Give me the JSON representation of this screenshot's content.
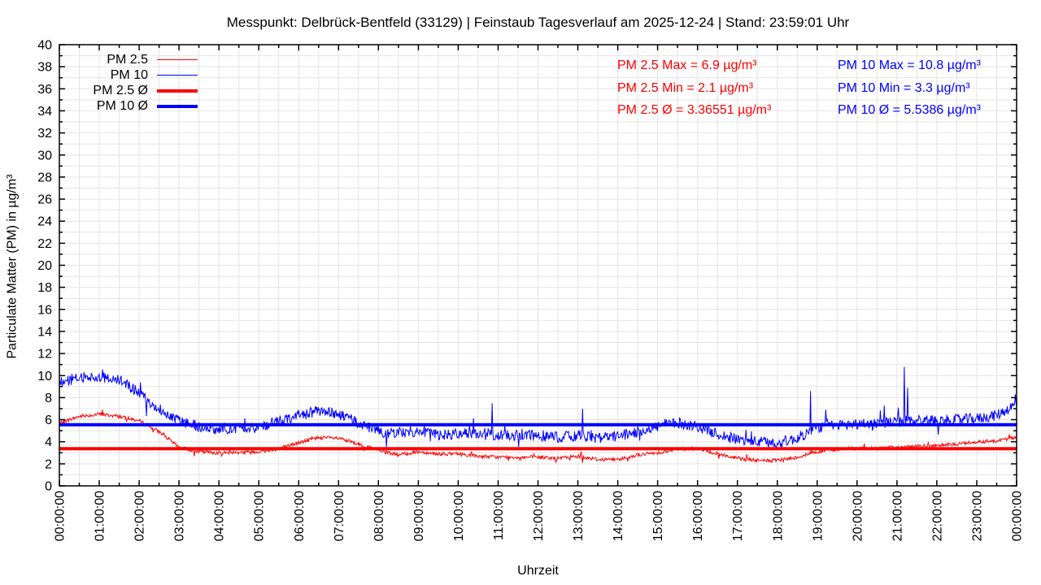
{
  "title": "Messpunkt: Delbrück-Bentfeld (33129) | Feinstaub Tagesverlauf am 2025-12-24 | Stand: 23:59:01 Uhr",
  "legend": {
    "items": [
      {
        "label": "PM 2.5",
        "color": "#ff0000",
        "sample_thickness": 1.5
      },
      {
        "label": "PM 10",
        "color": "#0000ff",
        "sample_thickness": 1.5
      },
      {
        "label": "PM 2.5 Ø",
        "color": "#ff0000",
        "sample_thickness": 4
      },
      {
        "label": "PM 10 Ø",
        "color": "#0000ff",
        "sample_thickness": 4
      }
    ]
  },
  "stats": {
    "pm25": {
      "color": "#ff0000",
      "max_label": "PM 2.5 Max = 6.9 µg/m³",
      "min_label": "PM 2.5 Min = 2.1 µg/m³",
      "avg_label": "PM 2.5 Ø = 3.36551 µg/m³",
      "max": 6.9,
      "min": 2.1,
      "avg": 3.36551
    },
    "pm10": {
      "color": "#0000ff",
      "max_label": "PM 10 Max = 10.8 µg/m³",
      "min_label": "PM 10 Min = 3.3 µg/m³",
      "avg_label": "PM 10 Ø = 5.5386 µg/m³",
      "max": 10.8,
      "min": 3.3,
      "avg": 5.5386
    }
  },
  "chart_data": {
    "type": "line",
    "title": "Messpunkt: Delbrück-Bentfeld (33129) | Feinstaub Tagesverlauf am 2025-12-24 | Stand: 23:59:01 Uhr",
    "xlabel": "Uhrzeit",
    "ylabel": "Particulate Matter (PM) in µg/m³",
    "ylim": [
      0,
      40
    ],
    "ytick_step": 2,
    "ytick_minor_step": 1,
    "xlim_minutes": [
      0,
      1440
    ],
    "xtick_step_minutes": 60,
    "xtick_minor_step_minutes": 30,
    "grid": true,
    "grid_color": "#e4e4e4",
    "xtick_labels": [
      "00:00:00",
      "01:00:00",
      "02:00:00",
      "03:00:00",
      "04:00:00",
      "05:00:00",
      "06:00:00",
      "07:00:00",
      "08:00:00",
      "09:00:00",
      "10:00:00",
      "11:00:00",
      "12:00:00",
      "13:00:00",
      "14:00:00",
      "15:00:00",
      "16:00:00",
      "17:00:00",
      "18:00:00",
      "19:00:00",
      "20:00:00",
      "21:00:00",
      "22:00:00",
      "23:00:00",
      "00:00:00"
    ],
    "legend_position": "top-left-inside",
    "series": [
      {
        "name": "PM 2.5",
        "color": "#ff0000",
        "width": 1,
        "seed": 7,
        "noise": 0.16,
        "clamp": [
          2.1,
          6.9
        ],
        "keypoints_halfhour": [
          5.7,
          6.3,
          6.5,
          6.3,
          5.9,
          4.9,
          3.5,
          3.1,
          3.0,
          3.05,
          3.1,
          3.4,
          3.9,
          4.4,
          4.3,
          3.8,
          3.2,
          2.8,
          3.1,
          2.9,
          2.9,
          2.7,
          2.6,
          2.6,
          2.6,
          2.5,
          2.7,
          2.4,
          2.4,
          2.8,
          3.0,
          3.3,
          3.4,
          2.9,
          2.5,
          2.3,
          2.3,
          2.6,
          3.1,
          3.3,
          3.4,
          3.4,
          3.5,
          3.6,
          3.6,
          3.8,
          4.0,
          4.1,
          4.4
        ],
        "spikes": [
          {
            "m": 65,
            "v": 6.9
          },
          {
            "m": 787,
            "v": 2.1
          },
          {
            "m": 1072,
            "v": 2.1
          },
          {
            "m": 1131,
            "v": 3.4
          },
          {
            "m": 1328,
            "v": 3.9
          }
        ]
      },
      {
        "name": "PM 10",
        "color": "#0000ff",
        "width": 1,
        "seed": 13,
        "noise": 0.5,
        "clamp": [
          3.3,
          10.8
        ],
        "keypoints_halfhour": [
          9.4,
          9.8,
          9.9,
          9.6,
          8.4,
          7.0,
          5.9,
          5.4,
          5.1,
          5.2,
          5.3,
          5.9,
          6.4,
          6.8,
          6.5,
          5.7,
          4.9,
          4.8,
          5.0,
          4.6,
          4.7,
          4.8,
          4.6,
          4.6,
          4.6,
          4.4,
          4.6,
          4.3,
          4.5,
          4.9,
          5.4,
          5.7,
          5.4,
          4.7,
          4.2,
          4.0,
          3.9,
          4.3,
          5.3,
          5.5,
          5.6,
          5.7,
          5.8,
          6.0,
          5.9,
          6.0,
          6.1,
          6.4,
          7.4
        ],
        "spikes": [
          {
            "m": 651,
            "v": 7.5
          },
          {
            "m": 787,
            "v": 7.0
          },
          {
            "m": 1130,
            "v": 8.6
          },
          {
            "m": 1153,
            "v": 6.9
          },
          {
            "m": 1271,
            "v": 10.8
          },
          {
            "m": 1276,
            "v": 8.9
          },
          {
            "m": 1438,
            "v": 8.3
          }
        ]
      }
    ],
    "avg_lines": [
      {
        "name": "PM 2.5 Ø",
        "color": "#ff0000",
        "value": 3.36551,
        "width": 4
      },
      {
        "name": "PM 10 Ø",
        "color": "#0000ff",
        "value": 5.5386,
        "width": 4
      }
    ]
  }
}
